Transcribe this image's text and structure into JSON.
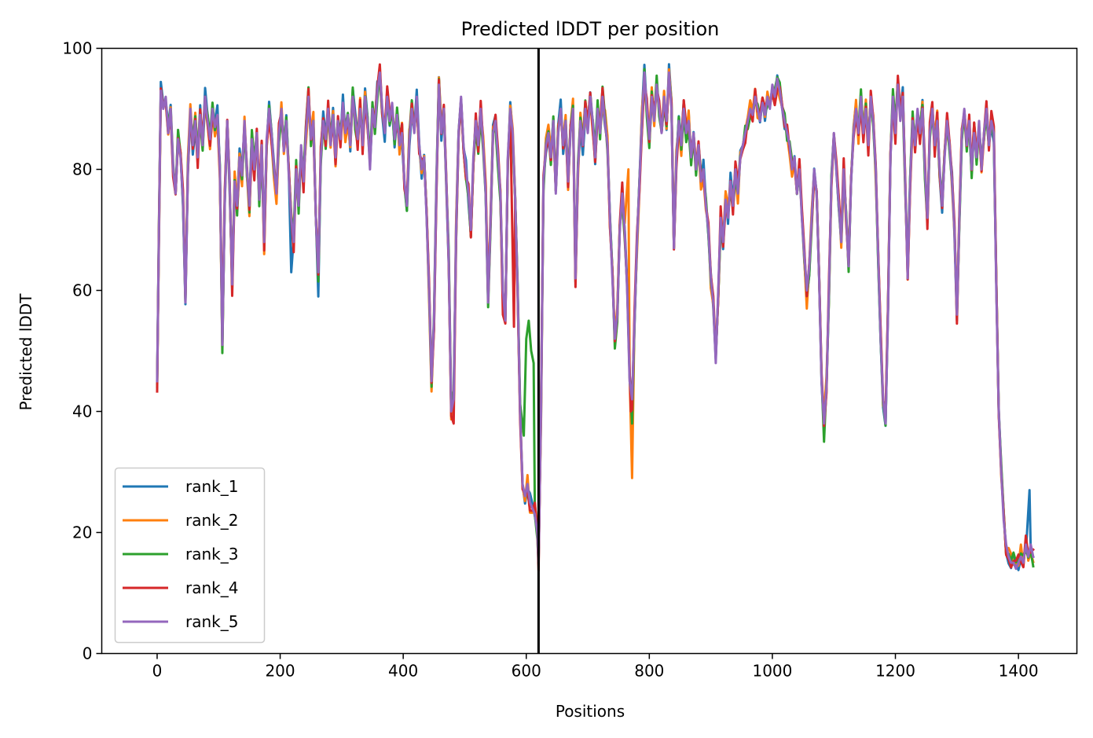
{
  "chart_data": {
    "type": "line",
    "title": "Predicted lDDT per position",
    "xlabel": "Positions",
    "ylabel": "Predicted lDDT",
    "xlim": [
      -90,
      1495
    ],
    "ylim": [
      0,
      100
    ],
    "xticks": [
      0,
      200,
      400,
      600,
      800,
      1000,
      1200,
      1400
    ],
    "yticks": [
      0,
      20,
      40,
      60,
      80,
      100
    ],
    "grid": false,
    "legend_position": "lower left",
    "vline": {
      "x": 620,
      "color": "#000000"
    },
    "series": [
      {
        "name": "rank_1",
        "color": "#1f77b4"
      },
      {
        "name": "rank_2",
        "color": "#ff7f0e"
      },
      {
        "name": "rank_3",
        "color": "#2ca02c"
      },
      {
        "name": "rank_4",
        "color": "#d62728"
      },
      {
        "name": "rank_5",
        "color": "#9467bd"
      }
    ],
    "base_profile": [
      [
        0,
        45
      ],
      [
        3,
        70
      ],
      [
        6,
        93
      ],
      [
        10,
        90
      ],
      [
        14,
        92
      ],
      [
        18,
        86
      ],
      [
        22,
        90
      ],
      [
        26,
        80
      ],
      [
        30,
        76
      ],
      [
        34,
        85
      ],
      [
        38,
        82
      ],
      [
        42,
        75
      ],
      [
        46,
        58
      ],
      [
        50,
        80
      ],
      [
        54,
        90
      ],
      [
        58,
        84
      ],
      [
        62,
        88
      ],
      [
        66,
        82
      ],
      [
        70,
        89
      ],
      [
        74,
        84
      ],
      [
        78,
        92
      ],
      [
        82,
        88
      ],
      [
        86,
        85
      ],
      [
        90,
        90
      ],
      [
        94,
        87
      ],
      [
        98,
        89
      ],
      [
        102,
        80
      ],
      [
        106,
        51
      ],
      [
        110,
        75
      ],
      [
        114,
        88
      ],
      [
        118,
        77
      ],
      [
        122,
        61
      ],
      [
        126,
        78
      ],
      [
        130,
        74
      ],
      [
        134,
        82
      ],
      [
        138,
        79
      ],
      [
        142,
        88
      ],
      [
        146,
        80
      ],
      [
        150,
        74
      ],
      [
        154,
        85
      ],
      [
        158,
        80
      ],
      [
        162,
        86
      ],
      [
        166,
        75
      ],
      [
        170,
        84
      ],
      [
        174,
        68
      ],
      [
        178,
        85
      ],
      [
        182,
        90
      ],
      [
        186,
        86
      ],
      [
        190,
        80
      ],
      [
        194,
        76
      ],
      [
        198,
        86
      ],
      [
        202,
        90
      ],
      [
        206,
        83
      ],
      [
        210,
        88
      ],
      [
        214,
        79
      ],
      [
        218,
        72
      ],
      [
        222,
        68
      ],
      [
        226,
        80
      ],
      [
        230,
        74
      ],
      [
        234,
        84
      ],
      [
        238,
        78
      ],
      [
        242,
        86
      ],
      [
        246,
        92
      ],
      [
        250,
        85
      ],
      [
        254,
        88
      ],
      [
        258,
        72
      ],
      [
        262,
        63
      ],
      [
        266,
        82
      ],
      [
        270,
        88
      ],
      [
        274,
        85
      ],
      [
        278,
        90
      ],
      [
        282,
        84
      ],
      [
        286,
        89
      ],
      [
        290,
        82
      ],
      [
        294,
        88
      ],
      [
        298,
        85
      ],
      [
        302,
        91
      ],
      [
        306,
        86
      ],
      [
        310,
        89
      ],
      [
        314,
        84
      ],
      [
        318,
        92
      ],
      [
        322,
        88
      ],
      [
        326,
        85
      ],
      [
        330,
        90
      ],
      [
        334,
        84
      ],
      [
        338,
        92
      ],
      [
        342,
        88
      ],
      [
        346,
        80
      ],
      [
        350,
        90
      ],
      [
        354,
        87
      ],
      [
        358,
        93
      ],
      [
        362,
        96
      ],
      [
        366,
        90
      ],
      [
        370,
        86
      ],
      [
        374,
        92
      ],
      [
        378,
        88
      ],
      [
        382,
        91
      ],
      [
        386,
        85
      ],
      [
        390,
        89
      ],
      [
        394,
        84
      ],
      [
        398,
        86
      ],
      [
        402,
        78
      ],
      [
        406,
        74
      ],
      [
        410,
        85
      ],
      [
        414,
        90
      ],
      [
        418,
        86
      ],
      [
        422,
        92
      ],
      [
        426,
        84
      ],
      [
        430,
        80
      ],
      [
        434,
        82
      ],
      [
        438,
        72
      ],
      [
        442,
        60
      ],
      [
        446,
        45
      ],
      [
        450,
        55
      ],
      [
        454,
        78
      ],
      [
        458,
        94
      ],
      [
        462,
        86
      ],
      [
        466,
        90
      ],
      [
        470,
        78
      ],
      [
        474,
        65
      ],
      [
        478,
        40
      ],
      [
        482,
        42
      ],
      [
        486,
        70
      ],
      [
        490,
        86
      ],
      [
        494,
        92
      ],
      [
        498,
        84
      ],
      [
        502,
        80
      ],
      [
        506,
        76
      ],
      [
        510,
        70
      ],
      [
        514,
        82
      ],
      [
        518,
        88
      ],
      [
        522,
        84
      ],
      [
        526,
        90
      ],
      [
        530,
        84
      ],
      [
        534,
        76
      ],
      [
        538,
        58
      ],
      [
        542,
        72
      ],
      [
        546,
        86
      ],
      [
        550,
        88
      ],
      [
        554,
        82
      ],
      [
        558,
        76
      ],
      [
        562,
        60
      ],
      [
        566,
        55
      ],
      [
        570,
        82
      ],
      [
        574,
        90
      ],
      [
        578,
        86
      ],
      [
        582,
        75
      ],
      [
        586,
        60
      ],
      [
        590,
        40
      ],
      [
        594,
        28
      ],
      [
        598,
        26
      ],
      [
        602,
        28
      ],
      [
        606,
        25
      ],
      [
        610,
        24
      ],
      [
        614,
        23
      ],
      [
        618,
        20
      ],
      [
        620,
        15
      ],
      [
        624,
        40
      ],
      [
        628,
        78
      ],
      [
        632,
        84
      ],
      [
        636,
        86
      ],
      [
        640,
        82
      ],
      [
        644,
        88
      ],
      [
        648,
        76
      ],
      [
        652,
        86
      ],
      [
        656,
        90
      ],
      [
        660,
        84
      ],
      [
        664,
        88
      ],
      [
        668,
        78
      ],
      [
        672,
        86
      ],
      [
        676,
        90
      ],
      [
        680,
        62
      ],
      [
        684,
        80
      ],
      [
        688,
        88
      ],
      [
        692,
        84
      ],
      [
        696,
        90
      ],
      [
        700,
        86
      ],
      [
        704,
        92
      ],
      [
        708,
        88
      ],
      [
        712,
        82
      ],
      [
        716,
        90
      ],
      [
        720,
        86
      ],
      [
        724,
        92
      ],
      [
        728,
        88
      ],
      [
        732,
        84
      ],
      [
        736,
        72
      ],
      [
        740,
        62
      ],
      [
        744,
        52
      ],
      [
        748,
        56
      ],
      [
        752,
        70
      ],
      [
        756,
        76
      ],
      [
        760,
        70
      ],
      [
        764,
        60
      ],
      [
        768,
        45
      ],
      [
        772,
        42
      ],
      [
        776,
        55
      ],
      [
        780,
        68
      ],
      [
        784,
        78
      ],
      [
        788,
        88
      ],
      [
        792,
        96
      ],
      [
        796,
        90
      ],
      [
        800,
        85
      ],
      [
        804,
        92
      ],
      [
        808,
        88
      ],
      [
        812,
        94
      ],
      [
        816,
        90
      ],
      [
        820,
        86
      ],
      [
        824,
        92
      ],
      [
        828,
        88
      ],
      [
        832,
        96
      ],
      [
        836,
        90
      ],
      [
        840,
        67
      ],
      [
        844,
        82
      ],
      [
        848,
        88
      ],
      [
        852,
        84
      ],
      [
        856,
        90
      ],
      [
        860,
        86
      ],
      [
        864,
        88
      ],
      [
        868,
        82
      ],
      [
        872,
        86
      ],
      [
        876,
        80
      ],
      [
        880,
        84
      ],
      [
        884,
        78
      ],
      [
        888,
        80
      ],
      [
        892,
        74
      ],
      [
        896,
        70
      ],
      [
        900,
        62
      ],
      [
        904,
        58
      ],
      [
        908,
        48
      ],
      [
        912,
        60
      ],
      [
        916,
        72
      ],
      [
        920,
        68
      ],
      [
        924,
        75
      ],
      [
        928,
        72
      ],
      [
        932,
        78
      ],
      [
        936,
        74
      ],
      [
        940,
        80
      ],
      [
        944,
        76
      ],
      [
        948,
        82
      ],
      [
        952,
        84
      ],
      [
        956,
        86
      ],
      [
        960,
        88
      ],
      [
        964,
        90
      ],
      [
        968,
        89
      ],
      [
        972,
        92
      ],
      [
        976,
        90
      ],
      [
        980,
        88
      ],
      [
        984,
        91
      ],
      [
        988,
        89
      ],
      [
        992,
        92
      ],
      [
        996,
        90
      ],
      [
        1000,
        94
      ],
      [
        1004,
        92
      ],
      [
        1008,
        95
      ],
      [
        1012,
        93
      ],
      [
        1016,
        90
      ],
      [
        1020,
        88
      ],
      [
        1024,
        86
      ],
      [
        1028,
        84
      ],
      [
        1032,
        80
      ],
      [
        1036,
        82
      ],
      [
        1040,
        76
      ],
      [
        1044,
        80
      ],
      [
        1048,
        72
      ],
      [
        1052,
        66
      ],
      [
        1056,
        60
      ],
      [
        1060,
        64
      ],
      [
        1064,
        72
      ],
      [
        1068,
        80
      ],
      [
        1072,
        76
      ],
      [
        1076,
        62
      ],
      [
        1080,
        45
      ],
      [
        1084,
        38
      ],
      [
        1088,
        44
      ],
      [
        1092,
        60
      ],
      [
        1096,
        78
      ],
      [
        1100,
        86
      ],
      [
        1104,
        80
      ],
      [
        1108,
        74
      ],
      [
        1112,
        68
      ],
      [
        1116,
        80
      ],
      [
        1120,
        72
      ],
      [
        1124,
        64
      ],
      [
        1128,
        78
      ],
      [
        1132,
        86
      ],
      [
        1136,
        90
      ],
      [
        1140,
        86
      ],
      [
        1144,
        92
      ],
      [
        1148,
        86
      ],
      [
        1152,
        90
      ],
      [
        1156,
        84
      ],
      [
        1160,
        92
      ],
      [
        1164,
        88
      ],
      [
        1168,
        80
      ],
      [
        1172,
        66
      ],
      [
        1176,
        52
      ],
      [
        1180,
        42
      ],
      [
        1184,
        38
      ],
      [
        1188,
        56
      ],
      [
        1192,
        82
      ],
      [
        1196,
        92
      ],
      [
        1200,
        86
      ],
      [
        1204,
        94
      ],
      [
        1208,
        88
      ],
      [
        1212,
        92
      ],
      [
        1216,
        78
      ],
      [
        1220,
        62
      ],
      [
        1224,
        78
      ],
      [
        1228,
        88
      ],
      [
        1232,
        84
      ],
      [
        1236,
        90
      ],
      [
        1240,
        86
      ],
      [
        1244,
        90
      ],
      [
        1248,
        80
      ],
      [
        1252,
        72
      ],
      [
        1256,
        86
      ],
      [
        1260,
        90
      ],
      [
        1264,
        84
      ],
      [
        1268,
        88
      ],
      [
        1272,
        80
      ],
      [
        1276,
        74
      ],
      [
        1280,
        82
      ],
      [
        1284,
        88
      ],
      [
        1288,
        84
      ],
      [
        1292,
        78
      ],
      [
        1296,
        70
      ],
      [
        1300,
        56
      ],
      [
        1304,
        72
      ],
      [
        1308,
        86
      ],
      [
        1312,
        90
      ],
      [
        1316,
        84
      ],
      [
        1320,
        88
      ],
      [
        1324,
        80
      ],
      [
        1328,
        86
      ],
      [
        1332,
        82
      ],
      [
        1336,
        88
      ],
      [
        1340,
        80
      ],
      [
        1344,
        86
      ],
      [
        1348,
        90
      ],
      [
        1352,
        84
      ],
      [
        1356,
        88
      ],
      [
        1360,
        86
      ],
      [
        1364,
        60
      ],
      [
        1368,
        40
      ],
      [
        1372,
        30
      ],
      [
        1376,
        22
      ],
      [
        1380,
        18
      ],
      [
        1384,
        16
      ],
      [
        1388,
        15
      ],
      [
        1392,
        15
      ],
      [
        1396,
        14
      ],
      [
        1400,
        15
      ],
      [
        1404,
        16
      ],
      [
        1408,
        15
      ],
      [
        1412,
        18
      ],
      [
        1416,
        16
      ],
      [
        1420,
        18
      ],
      [
        1424,
        16
      ]
    ],
    "series_jitter": [
      {
        "amp": 1.6,
        "seed": 1
      },
      {
        "amp": 1.8,
        "seed": 2
      },
      {
        "amp": 1.7,
        "seed": 3
      },
      {
        "amp": 1.9,
        "seed": 4
      },
      {
        "amp": 0.0,
        "seed": 5
      }
    ],
    "series_overrides": [
      [
        [
          218,
          63
        ],
        [
          262,
          59
        ],
        [
          1416,
          27
        ],
        [
          1418,
          27
        ]
      ],
      [
        [
          174,
          66
        ],
        [
          766,
          80
        ],
        [
          772,
          29
        ],
        [
          1056,
          57
        ],
        [
          1404,
          18
        ]
      ],
      [
        [
          596,
          36
        ],
        [
          600,
          52
        ],
        [
          604,
          55
        ],
        [
          608,
          50
        ],
        [
          612,
          48
        ],
        [
          772,
          38
        ],
        [
          1084,
          35
        ]
      ],
      [
        [
          482,
          38
        ],
        [
          562,
          56
        ],
        [
          580,
          54
        ],
        [
          770,
          40
        ]
      ],
      []
    ]
  }
}
